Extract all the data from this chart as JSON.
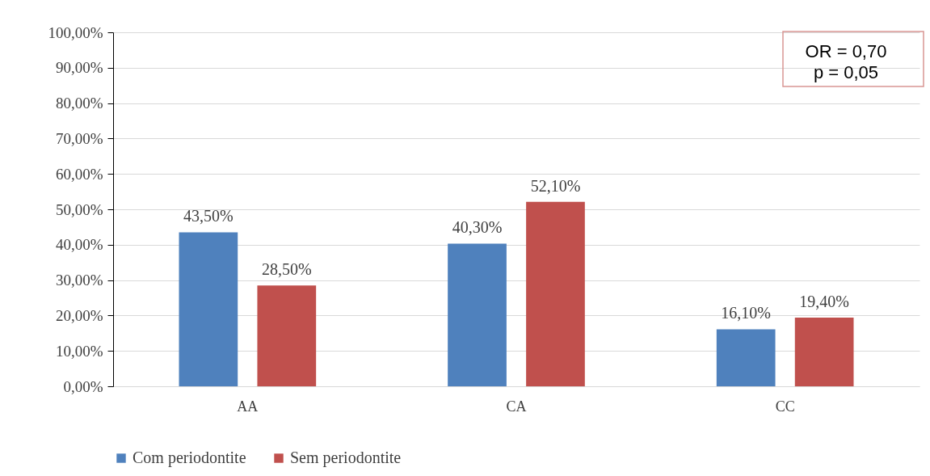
{
  "chart_data": {
    "type": "bar",
    "categories": [
      "AA",
      "CA",
      "CC"
    ],
    "series": [
      {
        "name": "Com periodontite",
        "color": "#4f81bd",
        "values": [
          43.5,
          40.3,
          16.1
        ],
        "value_labels": [
          "43,50%",
          "40,30%",
          "16,10%"
        ]
      },
      {
        "name": "Sem periodontite",
        "color": "#c0504d",
        "values": [
          28.5,
          52.1,
          19.4
        ],
        "value_labels": [
          "28,50%",
          "52,10%",
          "19,40%"
        ]
      }
    ],
    "ylim": [
      0,
      100
    ],
    "yticks": [
      {
        "value": 0,
        "label": "0,00%"
      },
      {
        "value": 10,
        "label": "10,00%"
      },
      {
        "value": 20,
        "label": "20,00%"
      },
      {
        "value": 30,
        "label": "30,00%"
      },
      {
        "value": 40,
        "label": "40,00%"
      },
      {
        "value": 50,
        "label": "50,00%"
      },
      {
        "value": 60,
        "label": "60,00%"
      },
      {
        "value": 70,
        "label": "70,00%"
      },
      {
        "value": 80,
        "label": "80,00%"
      },
      {
        "value": 90,
        "label": "90,00%"
      },
      {
        "value": 100,
        "label": "100,00%"
      }
    ],
    "annotations": [
      "OR = 0,70",
      "p = 0,05"
    ],
    "grid": "y",
    "legend": "bottom"
  }
}
